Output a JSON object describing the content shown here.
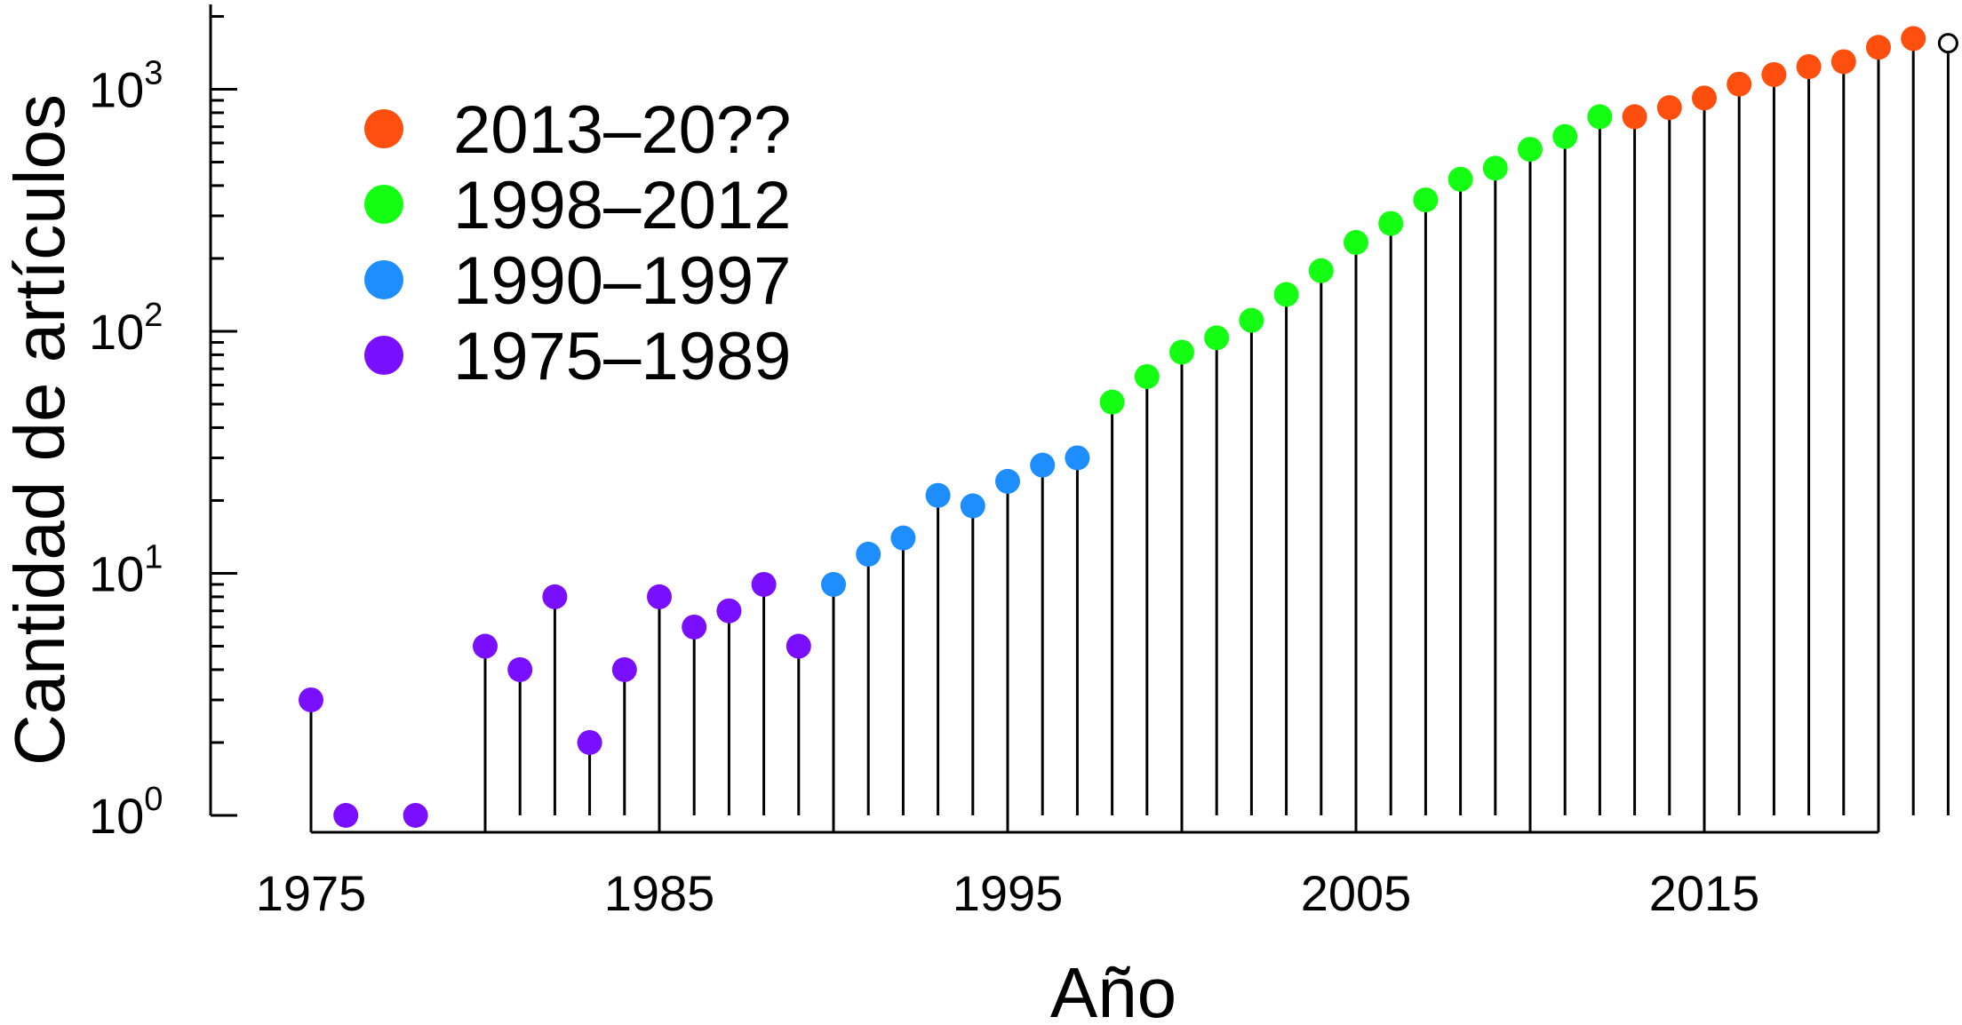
{
  "chart_data": {
    "type": "scatter",
    "style": "stem",
    "xlabel": "Año",
    "ylabel": "Cantidad de artículos",
    "yscale": "log",
    "ylim": [
      1,
      2000
    ],
    "xlim": [
      1975,
      2022
    ],
    "x_ticks": [
      1975,
      1985,
      1995,
      2005,
      2015
    ],
    "y_ticks": [
      {
        "base": "10",
        "exp": "0",
        "value": 1
      },
      {
        "base": "10",
        "exp": "1",
        "value": 10
      },
      {
        "base": "10",
        "exp": "2",
        "value": 100
      },
      {
        "base": "10",
        "exp": "3",
        "value": 1000
      }
    ],
    "legend_position": "top-left",
    "series": [
      {
        "name": "2013–20??",
        "color": "#ff4f0f",
        "points": [
          [
            2013,
            770
          ],
          [
            2014,
            840
          ],
          [
            2015,
            920
          ],
          [
            2016,
            1050
          ],
          [
            2017,
            1150
          ],
          [
            2018,
            1240
          ],
          [
            2019,
            1300
          ],
          [
            2020,
            1490
          ],
          [
            2021,
            1620
          ]
        ]
      },
      {
        "name": "1998–2012",
        "color": "#14ff14",
        "points": [
          [
            1998,
            51
          ],
          [
            1999,
            65
          ],
          [
            2000,
            82
          ],
          [
            2001,
            94
          ],
          [
            2002,
            111
          ],
          [
            2003,
            142
          ],
          [
            2004,
            178
          ],
          [
            2005,
            233
          ],
          [
            2006,
            279
          ],
          [
            2007,
            349
          ],
          [
            2008,
            425
          ],
          [
            2009,
            472
          ],
          [
            2010,
            565
          ],
          [
            2011,
            638
          ],
          [
            2012,
            770
          ]
        ]
      },
      {
        "name": "1990–1997",
        "color": "#1e8eff",
        "points": [
          [
            1990,
            9
          ],
          [
            1991,
            12
          ],
          [
            1992,
            14
          ],
          [
            1993,
            21
          ],
          [
            1994,
            19
          ],
          [
            1995,
            24
          ],
          [
            1996,
            28
          ],
          [
            1997,
            30
          ]
        ]
      },
      {
        "name": "1975–1989",
        "color": "#7a0fff",
        "points": [
          [
            1975,
            3
          ],
          [
            1976,
            1
          ],
          [
            1978,
            1
          ],
          [
            1980,
            5
          ],
          [
            1981,
            4
          ],
          [
            1982,
            8
          ],
          [
            1983,
            2
          ],
          [
            1984,
            4
          ],
          [
            1985,
            8
          ],
          [
            1986,
            6
          ],
          [
            1987,
            7
          ],
          [
            1988,
            9
          ],
          [
            1989,
            5
          ]
        ]
      }
    ],
    "open_points": [
      [
        2022,
        1550
      ]
    ]
  }
}
